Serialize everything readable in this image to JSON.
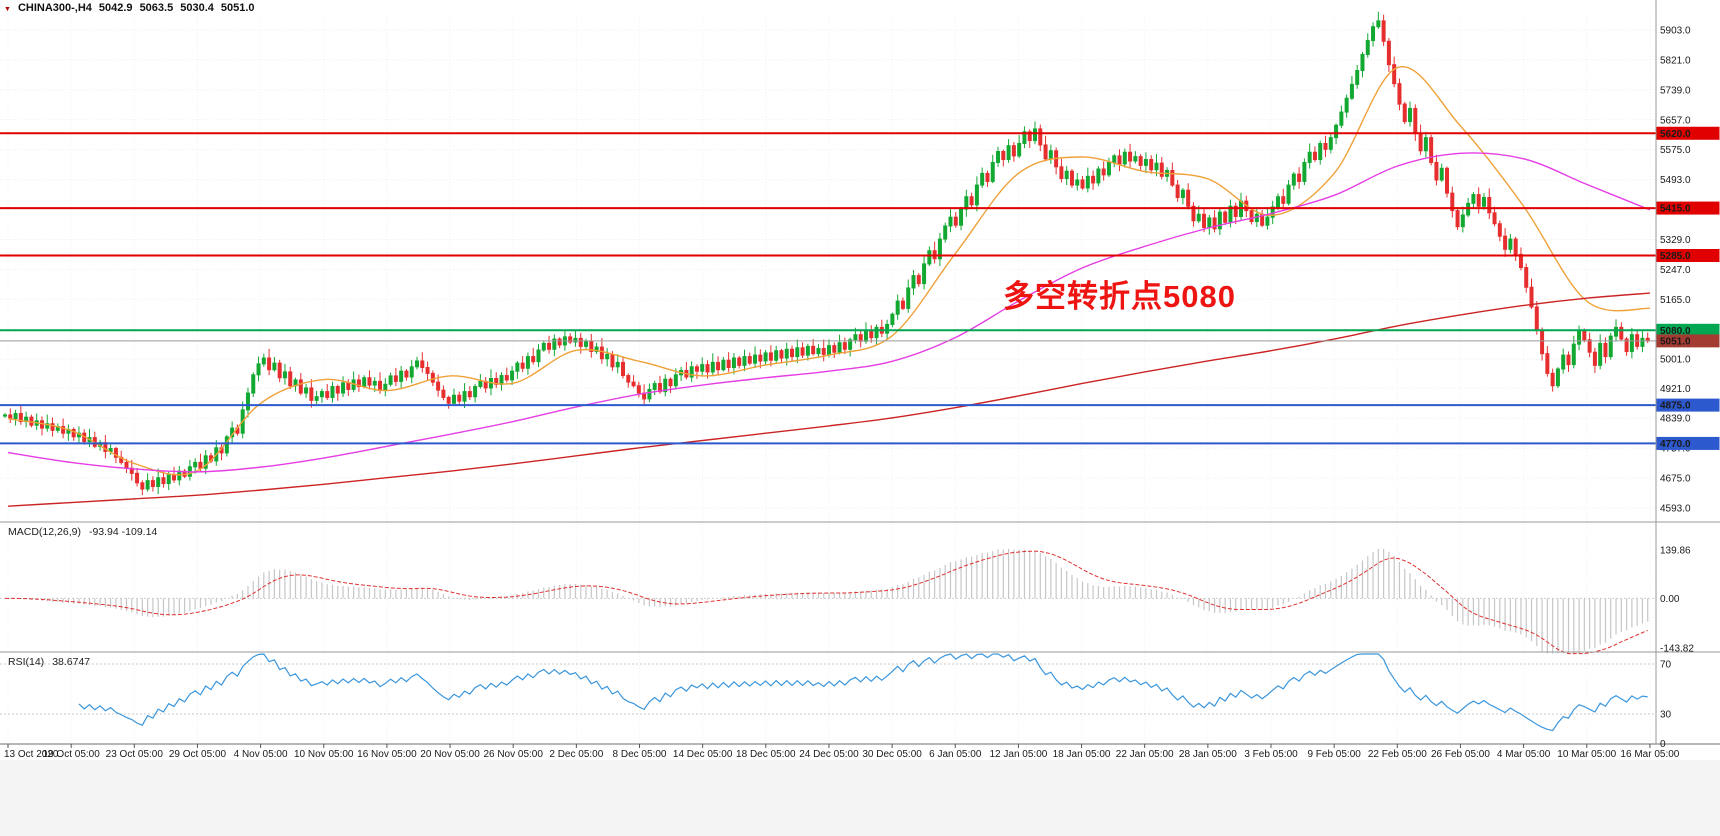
{
  "header": {
    "symbol": "CHINA300-,H4",
    "open": "5042.9",
    "high": "5063.5",
    "low": "5030.4",
    "close": "5051.0"
  },
  "annotation": {
    "text": "多空转折点5080",
    "color": "#ee1411"
  },
  "macd": {
    "name": "MACD(12,26,9)",
    "values": "-93.94 -109.14",
    "axis": [
      139.86,
      0.0,
      -143.82
    ],
    "hist_color": "#c6c6c6",
    "signal_color": "#e03030"
  },
  "rsi": {
    "name": "RSI(14)",
    "value": "38.6747",
    "axis": [
      70,
      30,
      0
    ],
    "levels": [
      70,
      30
    ],
    "color": "#3a96dd"
  },
  "chart_data": {
    "type": "candlestick",
    "symbol": "CHINA300-",
    "timeframe": "H4",
    "ohlc_display": {
      "open": 5042.9,
      "high": 5063.5,
      "low": 5030.4,
      "close": 5051.0
    },
    "colors": {
      "up": "#12a832",
      "down": "#e62e2e"
    },
    "price_axis": [
      5903.0,
      5821.0,
      5739.0,
      5657.0,
      5575.0,
      5493.0,
      5411.0,
      5329.0,
      5247.0,
      5165.0,
      5083.0,
      5001.0,
      4921.0,
      4839.0,
      4757.0,
      4675.0,
      4593.0
    ],
    "x_ticks": [
      "13 Oct 2020",
      "19 Oct 05:00",
      "23 Oct 05:00",
      "29 Oct 05:00",
      "4 Nov 05:00",
      "10 Nov 05:00",
      "16 Nov 05:00",
      "20 Nov 05:00",
      "26 Nov 05:00",
      "2 Dec 05:00",
      "8 Dec 05:00",
      "14 Dec 05:00",
      "18 Dec 05:00",
      "24 Dec 05:00",
      "30 Dec 05:00",
      "6 Jan 05:00",
      "12 Jan 05:00",
      "18 Jan 05:00",
      "22 Jan 05:00",
      "28 Jan 05:00",
      "3 Feb 05:00",
      "9 Feb 05:00",
      "22 Feb 05:00",
      "26 Feb 05:00",
      "4 Mar 05:00",
      "10 Mar 05:00",
      "16 Mar 05:00"
    ],
    "hlines": [
      {
        "price": 5620.0,
        "color": "#e00000",
        "width": 2
      },
      {
        "price": 5415.0,
        "color": "#e00000",
        "width": 2
      },
      {
        "price": 5285.0,
        "color": "#e00000",
        "width": 2
      },
      {
        "price": 5080.0,
        "color": "#00a651",
        "width": 2
      },
      {
        "price": 4875.0,
        "color": "#2d59cf",
        "width": 2
      },
      {
        "price": 4770.0,
        "color": "#2d59cf",
        "width": 2
      }
    ],
    "current_price": {
      "value": 5051.0,
      "line_color": "#9a9a9a",
      "badge_color": "#a33b32"
    },
    "first_open": 4845,
    "closes": [
      4848,
      4838,
      4852,
      4830,
      4842,
      4820,
      4832,
      4812,
      4824,
      4806,
      4816,
      4798,
      4808,
      4788,
      4798,
      4775,
      4786,
      4762,
      4772,
      4748,
      4756,
      4732,
      4718,
      4702,
      4688,
      4662,
      4645,
      4668,
      4652,
      4676,
      4660,
      4684,
      4670,
      4694,
      4680,
      4706,
      4718,
      4702,
      4736,
      4722,
      4758,
      4744,
      4788,
      4812,
      4798,
      4862,
      4908,
      4958,
      4988,
      5004,
      4972,
      4990,
      4950,
      4966,
      4928,
      4944,
      4908,
      4922,
      4888,
      4898,
      4912,
      4896,
      4926,
      4908,
      4936,
      4918,
      4944,
      4926,
      4950,
      4930,
      4940,
      4915,
      4932,
      4955,
      4940,
      4968,
      4952,
      4980,
      4996,
      4978,
      4962,
      4938,
      4916,
      4896,
      4880,
      4902,
      4886,
      4912,
      4898,
      4926,
      4940,
      4922,
      4948,
      4932,
      4956,
      4944,
      4968,
      4990,
      4976,
      5008,
      4994,
      5026,
      5044,
      5028,
      5056,
      5040,
      5062,
      5048,
      5058,
      5036,
      5050,
      5022,
      5034,
      5002,
      5014,
      4980,
      4992,
      4956,
      4938,
      4928,
      4908,
      4892,
      4918,
      4934,
      4912,
      4946,
      4928,
      4958,
      4970,
      4952,
      4980,
      4968,
      4986,
      4966,
      4992,
      4972,
      4998,
      4978,
      5004,
      4984,
      5008,
      4990,
      5012,
      4996,
      5018,
      4998,
      5024,
      5004,
      5028,
      5008,
      5032,
      5012,
      5036,
      5016,
      5030,
      5014,
      5038,
      5020,
      5046,
      5028,
      5054,
      5068,
      5050,
      5078,
      5060,
      5088,
      5072,
      5096,
      5124,
      5160,
      5140,
      5196,
      5230,
      5208,
      5262,
      5298,
      5276,
      5330,
      5366,
      5390,
      5368,
      5412,
      5446,
      5424,
      5478,
      5510,
      5488,
      5540,
      5570,
      5548,
      5586,
      5558,
      5592,
      5624,
      5600,
      5632,
      5588,
      5550,
      5572,
      5528,
      5496,
      5516,
      5478,
      5492,
      5470,
      5502,
      5484,
      5522,
      5506,
      5540,
      5558,
      5536,
      5568,
      5544,
      5556,
      5532,
      5548,
      5520,
      5538,
      5502,
      5518,
      5478,
      5444,
      5464,
      5420,
      5380,
      5398,
      5362,
      5388,
      5358,
      5404,
      5376,
      5420,
      5392,
      5434,
      5408,
      5378,
      5398,
      5368,
      5390,
      5418,
      5446,
      5428,
      5478,
      5508,
      5488,
      5540,
      5568,
      5548,
      5592,
      5576,
      5608,
      5642,
      5678,
      5716,
      5754,
      5792,
      5836,
      5874,
      5912,
      5928,
      5872,
      5808,
      5756,
      5700,
      5652,
      5688,
      5620,
      5572,
      5608,
      5540,
      5492,
      5524,
      5456,
      5408,
      5364,
      5396,
      5428,
      5452,
      5420,
      5444,
      5402,
      5372,
      5338,
      5302,
      5330,
      5288,
      5252,
      5198,
      5144,
      5080,
      5016,
      4962,
      4928,
      4974,
      5012,
      4986,
      5042,
      5078,
      5054,
      5020,
      4984,
      5044,
      5008,
      5064,
      5088,
      5056,
      5022,
      5068,
      5036,
      5058,
      5051
    ],
    "ma_lines": [
      {
        "name": "ma-fast-orange",
        "color": "#efa138",
        "points": [
          4838,
          4805,
          4715,
          4695,
          4880,
          4945,
          4915,
          4955,
          4935,
          5025,
          4995,
          4955,
          4985,
          5012,
          5065,
          5290,
          5510,
          5555,
          5515,
          5495,
          5395,
          5510,
          5800,
          5640,
          5420,
          5160,
          5140
        ]
      },
      {
        "name": "ma-mid-magenta",
        "color": "#e53ee5",
        "points": [
          4745,
          4718,
          4700,
          4692,
          4705,
          4730,
          4762,
          4795,
          4830,
          4870,
          4905,
          4930,
          4950,
          4968,
          4995,
          5060,
          5160,
          5250,
          5310,
          5360,
          5400,
          5450,
          5530,
          5565,
          5550,
          5480,
          5410
        ]
      },
      {
        "name": "ma-slow-red",
        "color": "#cc2424",
        "points": [
          4598,
          4608,
          4618,
          4628,
          4642,
          4658,
          4676,
          4694,
          4714,
          4736,
          4758,
          4778,
          4798,
          4818,
          4840,
          4868,
          4900,
          4934,
          4966,
          4996,
          5024,
          5056,
          5092,
          5122,
          5148,
          5168,
          5182
        ]
      }
    ]
  }
}
